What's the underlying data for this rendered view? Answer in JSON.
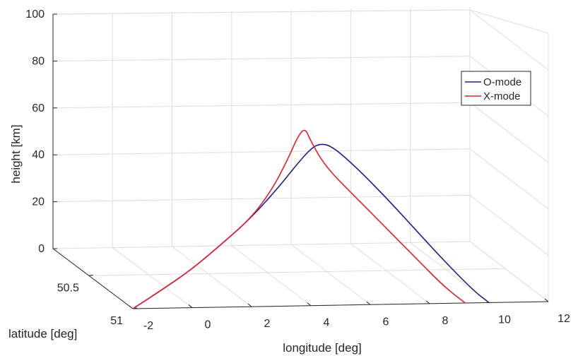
{
  "chart_data": {
    "type": "line",
    "projection": "3d",
    "xlabel": "longitude [deg]",
    "ylabel": "latitude [deg]",
    "zlabel": "height [km]",
    "xticks": [
      "-2",
      "0",
      "2",
      "4",
      "6",
      "8",
      "10",
      "12"
    ],
    "yticks": [
      "50.5",
      "51"
    ],
    "zticks": [
      "0",
      "20",
      "40",
      "60",
      "80",
      "100"
    ],
    "xlim": [
      -2,
      12
    ],
    "zlim": [
      0,
      100
    ],
    "grid": true,
    "legend_position": "top-right",
    "series": [
      {
        "name": "O-mode",
        "color": "#1f1f8f",
        "points": [
          [
            -2,
            0
          ],
          [
            -1,
            8
          ],
          [
            0,
            16.5
          ],
          [
            1,
            27
          ],
          [
            2,
            38
          ],
          [
            3,
            52
          ],
          [
            3.5,
            60
          ],
          [
            4,
            67
          ],
          [
            4.3,
            69
          ],
          [
            4.7,
            68
          ],
          [
            5.5,
            59
          ],
          [
            6.5,
            46
          ],
          [
            7.5,
            32
          ],
          [
            8.5,
            18
          ],
          [
            9.5,
            5
          ],
          [
            10,
            0
          ]
        ]
      },
      {
        "name": "X-mode",
        "color": "#e0202a",
        "points": [
          [
            -2,
            0
          ],
          [
            -1,
            8
          ],
          [
            0,
            16.5
          ],
          [
            1,
            27
          ],
          [
            2,
            38
          ],
          [
            2.7,
            50
          ],
          [
            3.2,
            62
          ],
          [
            3.55,
            72
          ],
          [
            3.8,
            76
          ],
          [
            4,
            70
          ],
          [
            4.5,
            59
          ],
          [
            5.5,
            46
          ],
          [
            6.5,
            33
          ],
          [
            7.5,
            20
          ],
          [
            8.5,
            7
          ],
          [
            9.2,
            0
          ]
        ]
      }
    ]
  }
}
